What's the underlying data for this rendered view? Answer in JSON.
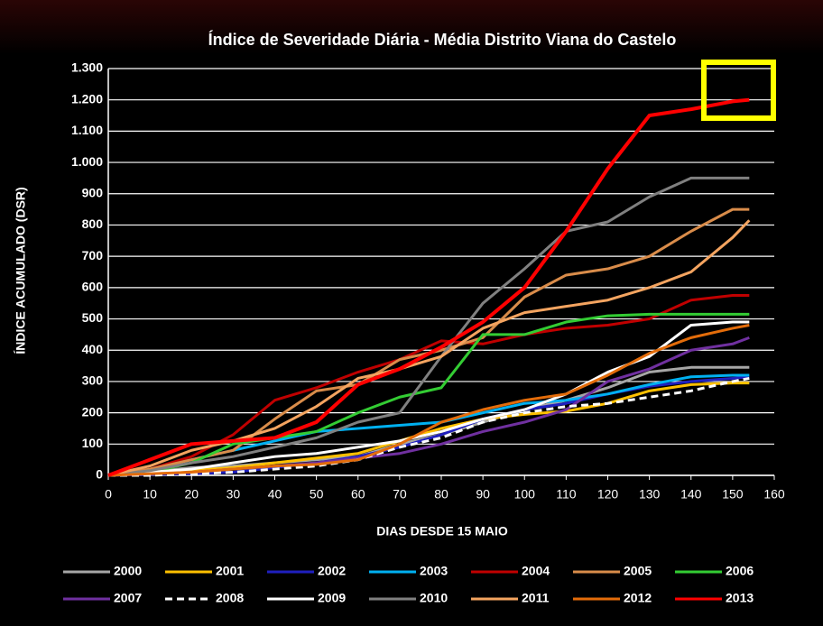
{
  "chart_data": {
    "type": "line",
    "title": "Índice de Severidade Diária - Média Distrito Viana do Castelo",
    "x_label": "DIAS DESDE 15  MAIO",
    "y_label": "ÍNDICE  ACUMULADO  (DSR)",
    "x": [
      0,
      10,
      20,
      30,
      40,
      50,
      60,
      70,
      80,
      90,
      100,
      110,
      120,
      130,
      140,
      150,
      154
    ],
    "series": [
      {
        "name": "2000",
        "color": "#a6a6a6",
        "values": [
          0,
          10,
          25,
          30,
          40,
          50,
          60,
          100,
          130,
          170,
          210,
          240,
          280,
          330,
          345,
          345,
          345
        ]
      },
      {
        "name": "2001",
        "color": "#ffc000",
        "values": [
          0,
          5,
          15,
          25,
          40,
          55,
          70,
          110,
          150,
          180,
          195,
          205,
          230,
          270,
          290,
          295,
          295
        ]
      },
      {
        "name": "2002",
        "color": "#1f1fbf",
        "values": [
          0,
          3,
          5,
          10,
          25,
          40,
          60,
          90,
          130,
          180,
          210,
          230,
          260,
          285,
          300,
          310,
          315
        ]
      },
      {
        "name": "2003",
        "color": "#00b0f0",
        "values": [
          0,
          20,
          50,
          80,
          110,
          140,
          150,
          160,
          170,
          200,
          230,
          240,
          260,
          290,
          315,
          320,
          320
        ]
      },
      {
        "name": "2004",
        "color": "#c00000",
        "values": [
          0,
          20,
          60,
          130,
          240,
          280,
          330,
          370,
          430,
          420,
          450,
          470,
          480,
          500,
          560,
          575,
          575
        ]
      },
      {
        "name": "2005",
        "color": "#d98c4a",
        "values": [
          0,
          20,
          50,
          80,
          180,
          270,
          290,
          370,
          400,
          440,
          570,
          640,
          660,
          700,
          780,
          850,
          850
        ]
      },
      {
        "name": "2006",
        "color": "#33cc33",
        "values": [
          0,
          10,
          40,
          100,
          120,
          140,
          200,
          250,
          280,
          450,
          450,
          490,
          510,
          515,
          515,
          515,
          515
        ]
      },
      {
        "name": "2007",
        "color": "#7030a0",
        "values": [
          0,
          5,
          10,
          20,
          30,
          40,
          55,
          70,
          100,
          140,
          170,
          210,
          300,
          340,
          400,
          420,
          440
        ]
      },
      {
        "name": "2008",
        "color": "#ffffff",
        "dashed": true,
        "values": [
          0,
          0,
          5,
          10,
          20,
          30,
          50,
          90,
          120,
          170,
          200,
          220,
          230,
          250,
          270,
          300,
          310
        ]
      },
      {
        "name": "2009",
        "color": "#ffffff",
        "values": [
          0,
          10,
          20,
          40,
          60,
          70,
          90,
          110,
          140,
          180,
          210,
          260,
          330,
          380,
          480,
          490,
          490
        ]
      },
      {
        "name": "2010",
        "color": "#808080",
        "values": [
          0,
          15,
          40,
          60,
          90,
          120,
          170,
          200,
          380,
          550,
          660,
          780,
          810,
          890,
          950,
          950,
          950
        ]
      },
      {
        "name": "2011",
        "color": "#f4a460",
        "values": [
          0,
          30,
          80,
          110,
          150,
          220,
          310,
          340,
          380,
          470,
          520,
          540,
          560,
          600,
          650,
          760,
          815
        ]
      },
      {
        "name": "2012",
        "color": "#e36c0a",
        "values": [
          0,
          5,
          10,
          20,
          30,
          35,
          50,
          100,
          170,
          210,
          240,
          260,
          320,
          390,
          440,
          470,
          480
        ]
      },
      {
        "name": "2013",
        "color": "#ff0000",
        "values": [
          0,
          50,
          100,
          110,
          120,
          170,
          290,
          340,
          410,
          490,
          600,
          780,
          980,
          1150,
          1170,
          1195,
          1200
        ]
      }
    ],
    "xlim": [
      0,
      160
    ],
    "xticks": [
      0,
      10,
      20,
      30,
      40,
      50,
      60,
      70,
      80,
      90,
      100,
      110,
      120,
      130,
      140,
      150,
      160
    ],
    "ylim": [
      0,
      1300
    ],
    "yticks": [
      0,
      100,
      200,
      300,
      400,
      500,
      600,
      700,
      800,
      900,
      {
        "value": 1000,
        "label": "1.000"
      },
      {
        "value": 1100,
        "label": "1.100"
      },
      {
        "value": 1200,
        "label": "1.200"
      },
      {
        "value": 1300,
        "label": "1.300"
      }
    ],
    "grid": true
  }
}
